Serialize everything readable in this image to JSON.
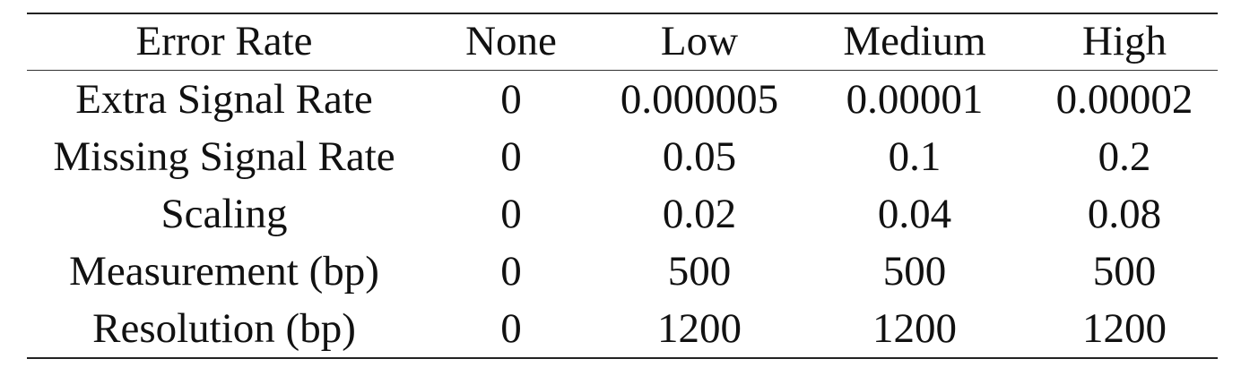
{
  "table": {
    "headers": [
      "Error Rate",
      "None",
      "Low",
      "Medium",
      "High"
    ],
    "rows": [
      [
        "Extra Signal Rate",
        "0",
        "0.000005",
        "0.00001",
        "0.00002"
      ],
      [
        "Missing Signal Rate",
        "0",
        "0.05",
        "0.1",
        "0.2"
      ],
      [
        "Scaling",
        "0",
        "0.02",
        "0.04",
        "0.08"
      ],
      [
        "Measurement (bp)",
        "0",
        "500",
        "500",
        "500"
      ],
      [
        "Resolution (bp)",
        "0",
        "1200",
        "1200",
        "1200"
      ]
    ]
  }
}
